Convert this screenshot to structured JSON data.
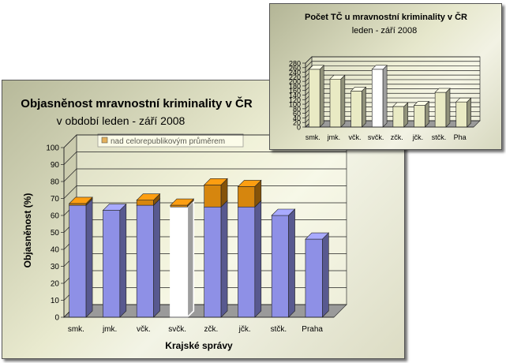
{
  "main_chart": {
    "title": "Objasněnost mravnostní kriminality v ČR",
    "subtitle": "v období leden - září 2008",
    "xlabel": "Krajské správy",
    "ylabel": "Objasněnost (%)",
    "legend": "nad celorepublikovým průměrem"
  },
  "inset_chart": {
    "title": "Počet TČ u mravnostní kriminality v ČR",
    "subtitle": "leden - září 2008"
  },
  "chart_data": [
    {
      "type": "bar",
      "stacked": true,
      "title": "Objasněnost mravnostní kriminality v ČR",
      "subtitle": "v období leden - září 2008",
      "xlabel": "Krajské správy",
      "ylabel": "Objasněnost (%)",
      "categories": [
        "smk.",
        "jmk.",
        "včk.",
        "svčk.",
        "zčk.",
        "jčk.",
        "stčk.",
        "Praha"
      ],
      "series": [
        {
          "values": [
            66,
            63,
            66,
            65,
            65,
            65,
            60,
            46
          ]
        },
        {
          "name": "nad celorepublikovým průměrem",
          "values": [
            1,
            0,
            3,
            1,
            13,
            12,
            0,
            0
          ]
        }
      ],
      "highlighted_category": "svčk.",
      "ylim": [
        0,
        100
      ],
      "yticks": [
        0,
        10,
        20,
        30,
        40,
        50,
        60,
        70,
        80,
        90,
        100
      ],
      "grid": true,
      "legend_position": "top",
      "colors": {
        "base": "#8e90e6",
        "above": "#d6860e",
        "highlight": "#ffffff"
      }
    },
    {
      "type": "bar",
      "title": "Počet TČ u mravnostní kriminality v ČR",
      "subtitle": "leden - září 2008",
      "categories": [
        "smk.",
        "jmk.",
        "včk.",
        "svčk.",
        "zčk.",
        "jčk.",
        "stčk.",
        "Pha"
      ],
      "values": [
        253,
        210,
        158,
        253,
        90,
        95,
        152,
        110
      ],
      "highlighted_category": "svčk.",
      "ylim": [
        0,
        280
      ],
      "yticks": [
        0,
        20,
        40,
        60,
        80,
        100,
        120,
        140,
        160,
        180,
        200,
        220,
        240,
        260,
        280
      ],
      "grid": true,
      "colors": {
        "bar": "#e9eac4",
        "highlight": "#ffffff"
      }
    }
  ]
}
